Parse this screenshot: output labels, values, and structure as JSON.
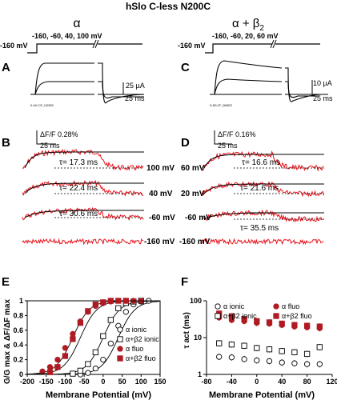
{
  "figure_title": "hSlo C-less N200C",
  "columns": {
    "left_heading": "α",
    "right_heading_main": "α + β",
    "right_heading_sub": "2"
  },
  "protocols": {
    "left": {
      "holding": "-160 mV",
      "steps": "-160, -60, 40, 100 mV"
    },
    "right": {
      "holding": "-160 mV",
      "steps": "-160, -60, 20, 60 mV"
    }
  },
  "panel_labels": {
    "A": "A",
    "B": "B",
    "C": "C",
    "D": "D",
    "E": "E",
    "F": "F"
  },
  "panel_A": {
    "scale_y": "25 µA",
    "scale_x": "25 ms",
    "file_label": "K-AX-C/F_102603"
  },
  "panel_C": {
    "scale_y": "10 µA",
    "scale_x": "25 ms",
    "file_label": "D-NS-CF_060822"
  },
  "panel_B": {
    "scale_y": "ΔF/F 0.28%",
    "scale_x": "25 ms",
    "traces": [
      {
        "tau": "τ= 17.3 ms",
        "voltage": "100 mV"
      },
      {
        "tau": "τ= 22.4 ms",
        "voltage": "40 mV"
      },
      {
        "tau": "τ= 30.6 ms",
        "voltage": "-60 mV"
      },
      {
        "tau": "",
        "voltage": "-160 mV"
      }
    ]
  },
  "panel_D": {
    "scale_y": "ΔF/F 0.16%",
    "scale_x": "25 ms",
    "traces": [
      {
        "tau": "τ= 16.6 ms",
        "voltage": "60 mV"
      },
      {
        "tau": "τ= 21.6 ms",
        "voltage": "20 mV"
      },
      {
        "tau": "τ= 35.5 ms",
        "voltage": "-60 mV"
      },
      {
        "tau": "",
        "voltage": "-160 mV"
      }
    ]
  },
  "colors": {
    "trace_red": "#e8141c",
    "fluo_marker": "#b01a22",
    "line": "#000000"
  },
  "chart_data": [
    {
      "panel": "E",
      "type": "scatter",
      "xlabel": "Membrane Potential (mV)",
      "ylabel": "G/G max & ΔF/ΔF max",
      "xlim": [
        -200,
        150
      ],
      "ylim": [
        0,
        1
      ],
      "xticks": [
        "-200",
        "-150",
        "-100",
        "-50",
        "0",
        "50",
        "100",
        "150"
      ],
      "yticks": [
        "0",
        "0.2",
        "0.4",
        "0.6",
        "0.8",
        "1"
      ],
      "legend": [
        "α ionic",
        "α+β2 ionic",
        "α fluo",
        "α+β2 fluo"
      ],
      "legend_position": "bottom-right",
      "series": [
        {
          "name": "α ionic",
          "marker": "open-circle",
          "x": [
            -60,
            -40,
            -20,
            0,
            20,
            40,
            60,
            80,
            100,
            120
          ],
          "y": [
            0.0,
            0.02,
            0.08,
            0.2,
            0.42,
            0.66,
            0.85,
            0.95,
            0.99,
            1.0
          ]
        },
        {
          "name": "α+β2 ionic",
          "marker": "open-square",
          "x": [
            -80,
            -60,
            -40,
            -20,
            0,
            20,
            40,
            60,
            80,
            100
          ],
          "y": [
            0.01,
            0.05,
            0.14,
            0.3,
            0.52,
            0.74,
            0.9,
            0.97,
            0.99,
            1.0
          ]
        },
        {
          "name": "α fluo",
          "marker": "filled-circle",
          "x": [
            -160,
            -140,
            -120,
            -100,
            -80,
            -60,
            -40,
            -20,
            0,
            20,
            40,
            60,
            80,
            100
          ],
          "y": [
            0.04,
            0.1,
            0.2,
            0.36,
            0.55,
            0.72,
            0.85,
            0.93,
            0.97,
            0.99,
            1.0,
            1.0,
            1.0,
            1.0
          ]
        },
        {
          "name": "α+β2 fluo",
          "marker": "filled-square",
          "x": [
            -140,
            -120,
            -100,
            -80,
            -60,
            -40,
            -20,
            0,
            20,
            40,
            60
          ],
          "y": [
            0.03,
            0.1,
            0.25,
            0.48,
            0.7,
            0.86,
            0.95,
            0.98,
            1.0,
            1.0,
            1.0
          ]
        }
      ]
    },
    {
      "panel": "F",
      "type": "scatter",
      "xlabel": "Membrane Potential (mV)",
      "ylabel": "τ act (ms)",
      "xlim": [
        -80,
        120
      ],
      "ylim": [
        1,
        100
      ],
      "yscale": "log",
      "xticks": [
        "-80",
        "-40",
        "0",
        "40",
        "80",
        "120"
      ],
      "yticks": [
        "1",
        "10",
        "100"
      ],
      "legend": [
        "α ionic",
        "α+β2 ionic",
        "α fluo",
        "α+β2 fluo"
      ],
      "legend_position": "top",
      "series": [
        {
          "name": "α ionic",
          "marker": "open-circle",
          "x": [
            -60,
            -40,
            -20,
            0,
            20,
            40,
            60,
            80,
            100
          ],
          "y": [
            3.0,
            2.9,
            2.6,
            2.4,
            2.3,
            2.1,
            2.0,
            1.9,
            1.9
          ]
        },
        {
          "name": "α+β2 ionic",
          "marker": "open-square",
          "x": [
            -60,
            -40,
            -20,
            0,
            20,
            40,
            60,
            80,
            100
          ],
          "y": [
            7.0,
            6.5,
            6.0,
            5.2,
            4.8,
            4.3,
            4.0,
            3.6,
            5.5
          ]
        },
        {
          "name": "α fluo",
          "marker": "filled-circle",
          "x": [
            -60,
            -40,
            -20,
            0,
            20,
            40,
            60,
            80,
            100
          ],
          "y": [
            35,
            30,
            28,
            25,
            24,
            22,
            20,
            19,
            18
          ]
        },
        {
          "name": "α+β2 fluo",
          "marker": "filled-square",
          "x": [
            -60,
            -40,
            -20,
            0,
            20,
            40,
            60,
            80,
            100
          ],
          "y": [
            45,
            38,
            32,
            28,
            26,
            24,
            22,
            21,
            20
          ]
        }
      ]
    }
  ]
}
